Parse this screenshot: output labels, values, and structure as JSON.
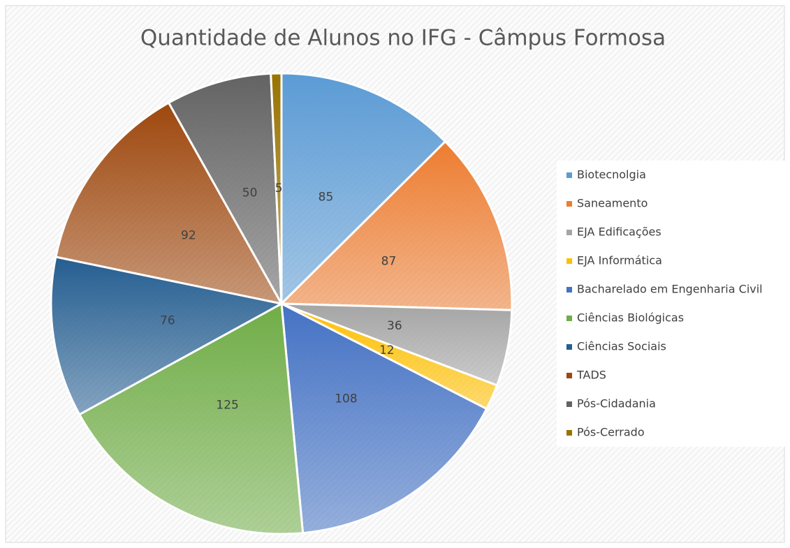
{
  "chart_data": {
    "type": "pie",
    "title": "Quantidade de Alunos no IFG - Câmpus Formosa",
    "categories": [
      "Biotecnolgia",
      "Saneamento",
      "EJA Edificações",
      "EJA Informática",
      "Bacharelado em Engenharia Civil",
      "Ciências Biológicas",
      "Ciências Sociais",
      "TADS",
      "Pós-Cidadania",
      "Pós-Cerrado"
    ],
    "values": [
      85,
      87,
      36,
      12,
      108,
      125,
      76,
      92,
      50,
      5
    ],
    "colors": [
      "#5b9bd5",
      "#ed7d31",
      "#a5a5a5",
      "#ffc000",
      "#4472c4",
      "#70ad47",
      "#255e91",
      "#9e480e",
      "#636363",
      "#997300"
    ],
    "legend": "right"
  }
}
